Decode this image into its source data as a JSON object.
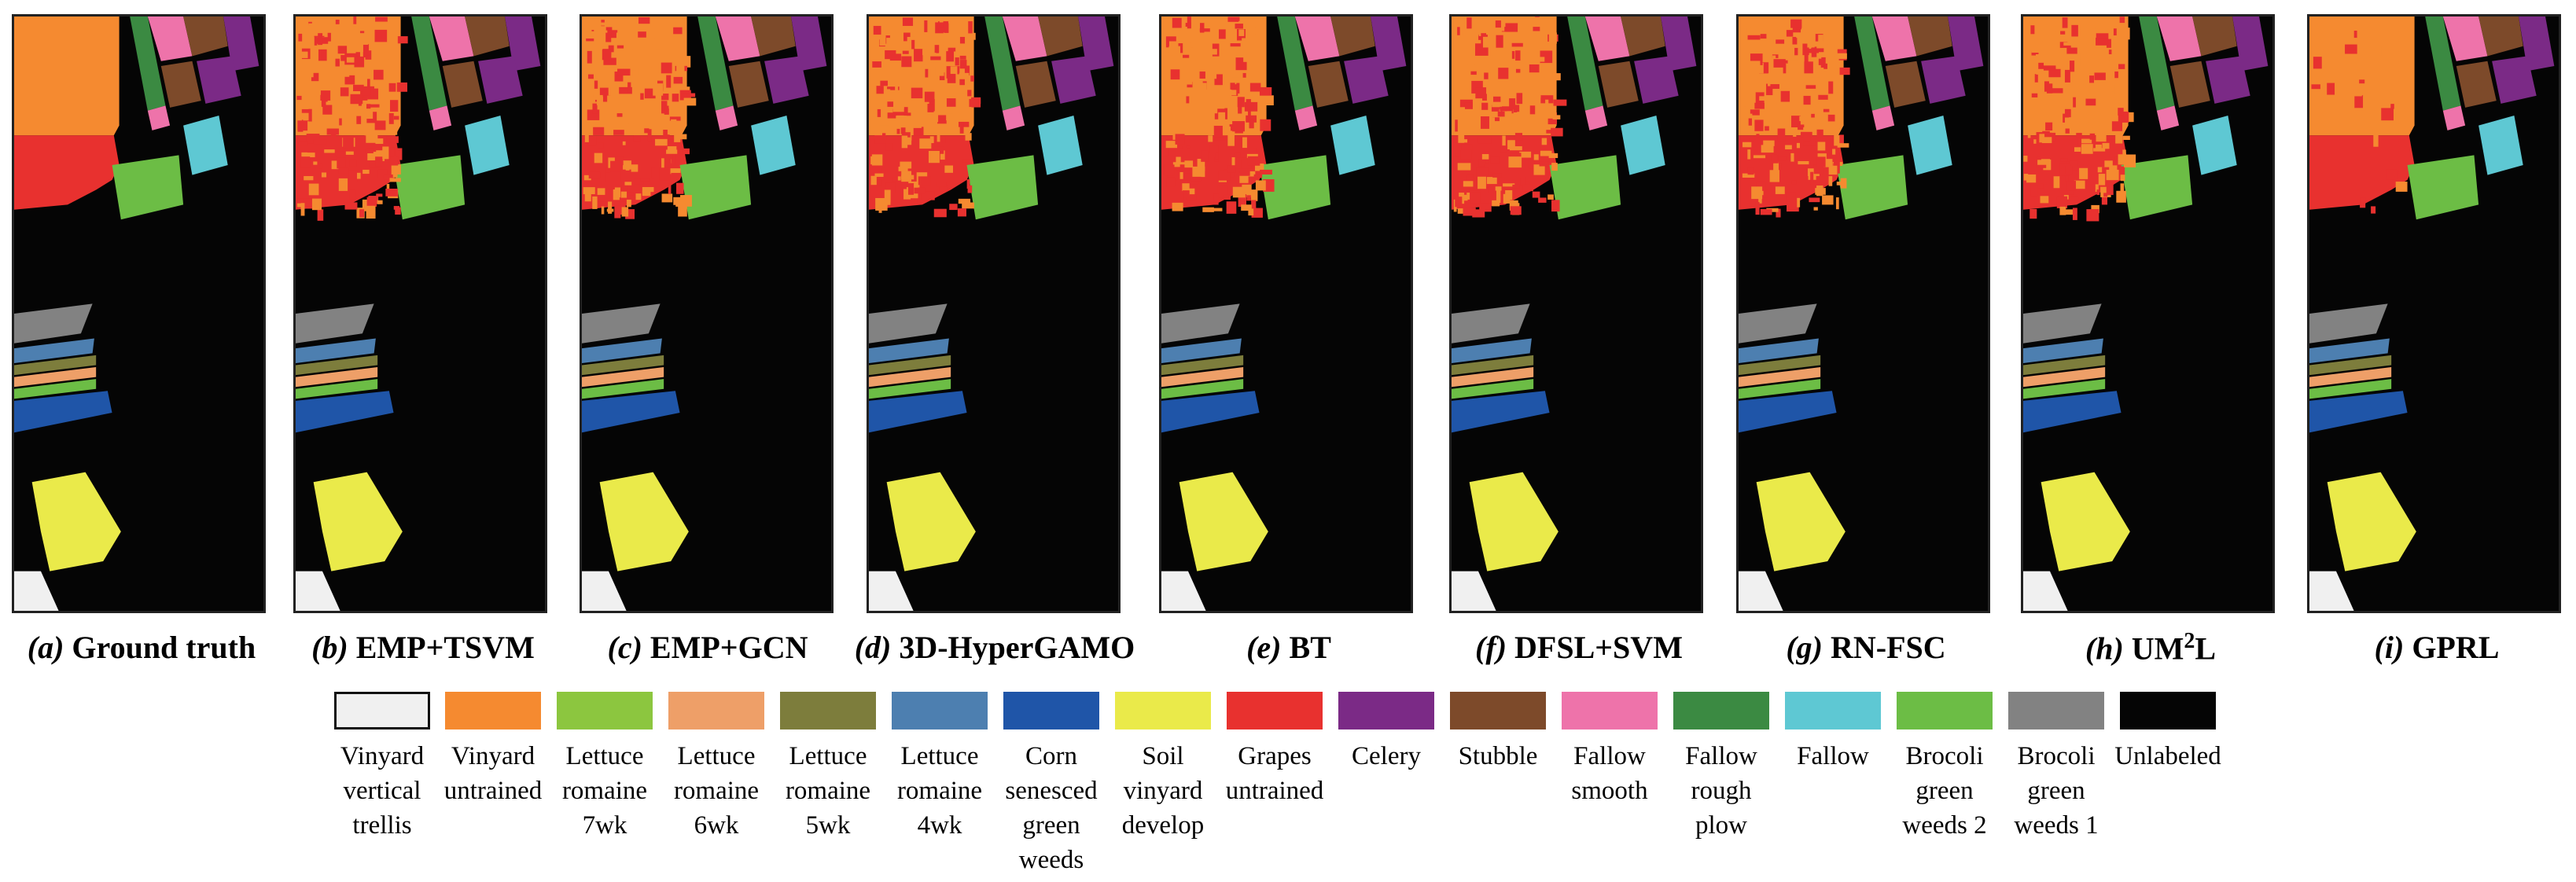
{
  "panels": [
    {
      "letter": "(a)",
      "title": "Ground truth"
    },
    {
      "letter": "(b)",
      "title": "EMP+TSVM"
    },
    {
      "letter": "(c)",
      "title": "EMP+GCN"
    },
    {
      "letter": "(d)",
      "title": "3D-HyperGAMO"
    },
    {
      "letter": "(e)",
      "title": "BT"
    },
    {
      "letter": "(f)",
      "title": "DFSL+SVM"
    },
    {
      "letter": "(g)",
      "title": "RN-FSC"
    },
    {
      "letter": "(h)",
      "title": "UM",
      "title_sup": "2",
      "title_after": "L"
    },
    {
      "letter": "(i)",
      "title": "GPRL"
    }
  ],
  "legend": [
    {
      "label": "Vinyard vertical trellis",
      "color": "#f0f0f0"
    },
    {
      "label": "Vinyard untrained",
      "color": "#f58a30"
    },
    {
      "label": "Lettuce romaine 7wk",
      "color": "#8cc63f"
    },
    {
      "label": "Lettuce romaine 6wk",
      "color": "#ee9f68"
    },
    {
      "label": "Lettuce romaine 5wk",
      "color": "#7d7d3c"
    },
    {
      "label": "Lettuce romaine 4wk",
      "color": "#4d7fb0"
    },
    {
      "label": "Corn senesced green weeds",
      "color": "#1f55a8"
    },
    {
      "label": "Soil vinyard develop",
      "color": "#eaea4a"
    },
    {
      "label": "Grapes untrained",
      "color": "#e8312f"
    },
    {
      "label": "Celery",
      "color": "#7b2a86"
    },
    {
      "label": "Stubble",
      "color": "#7d4a2a"
    },
    {
      "label": "Fallow smooth",
      "color": "#ee73aa"
    },
    {
      "label": "Fallow rough plow",
      "color": "#3b8a42"
    },
    {
      "label": "Fallow",
      "color": "#5ec8d3"
    },
    {
      "label": "Brocoli green weeds 2",
      "color": "#6cbd45"
    },
    {
      "label": "Brocoli green weeds 1",
      "color": "#828282"
    },
    {
      "label": "Unlabeled",
      "color": "#050505"
    }
  ]
}
